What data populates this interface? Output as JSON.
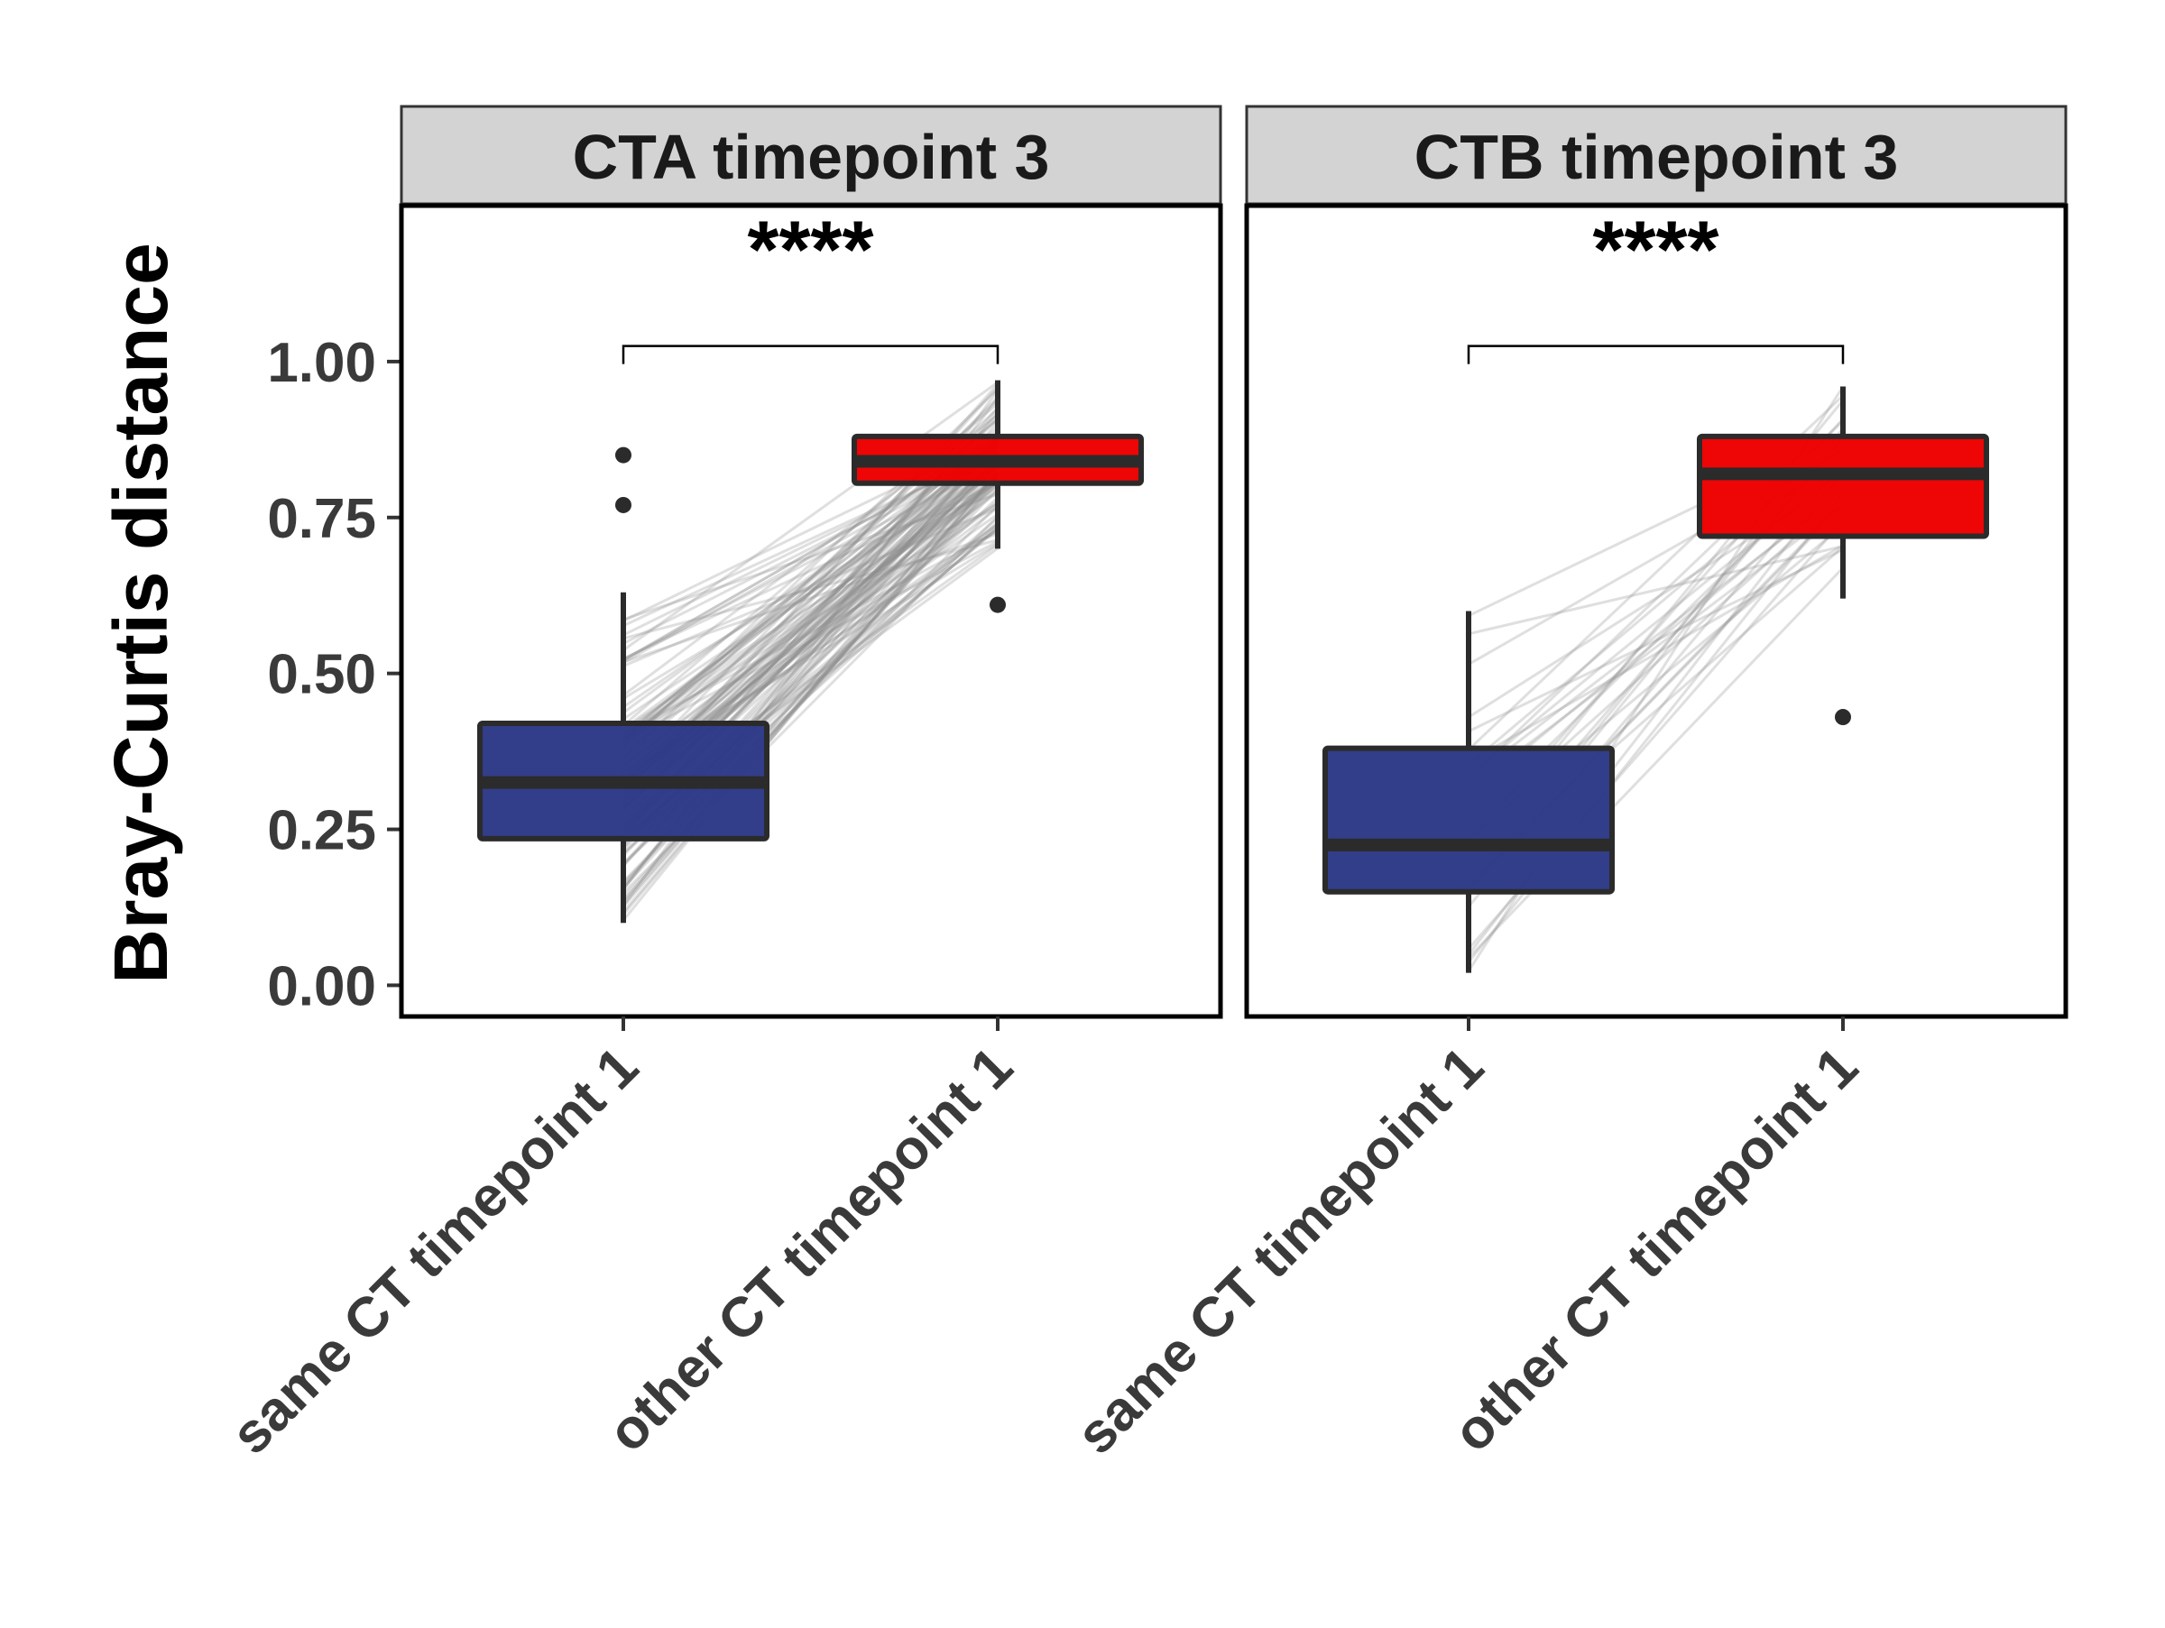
{
  "chart_data": {
    "type": "box",
    "ylabel": "Bray-Curtis distance",
    "ylim": [
      -0.05,
      1.25
    ],
    "yticks": [
      "0.00",
      "0.25",
      "0.50",
      "0.75",
      "1.00"
    ],
    "yticks_values": [
      0,
      0.25,
      0.5,
      0.75,
      1.0
    ],
    "categories": [
      "same CT timepoint 1",
      "other CT timepoint 1"
    ],
    "colors": {
      "same CT timepoint 1": "#2e3a87",
      "other CT timepoint 1": "#ee0000",
      "box_outline": "#2b2b2b",
      "pair_lines": "#8c8c8c",
      "strip_fill": "#d3d3d3"
    },
    "panels": [
      {
        "title": "CTA timepoint 3",
        "significance": "****",
        "pairs_count": 120,
        "boxes": [
          {
            "category": "same CT timepoint 1",
            "min": 0.1,
            "q1": 0.235,
            "median": 0.325,
            "q3": 0.42,
            "max": 0.63,
            "outliers": [
              0.77,
              0.85
            ]
          },
          {
            "category": "other CT timepoint 1",
            "min": 0.7,
            "q1": 0.805,
            "median": 0.84,
            "q3": 0.88,
            "max": 0.97,
            "outliers": [
              0.61
            ]
          }
        ]
      },
      {
        "title": "CTB timepoint 3",
        "significance": "****",
        "pairs_count": 30,
        "boxes": [
          {
            "category": "same CT timepoint 1",
            "min": 0.02,
            "q1": 0.15,
            "median": 0.225,
            "q3": 0.38,
            "max": 0.6,
            "outliers": []
          },
          {
            "category": "other CT timepoint 1",
            "min": 0.62,
            "q1": 0.72,
            "median": 0.82,
            "q3": 0.88,
            "max": 0.96,
            "outliers": [
              0.43
            ]
          }
        ]
      }
    ]
  }
}
